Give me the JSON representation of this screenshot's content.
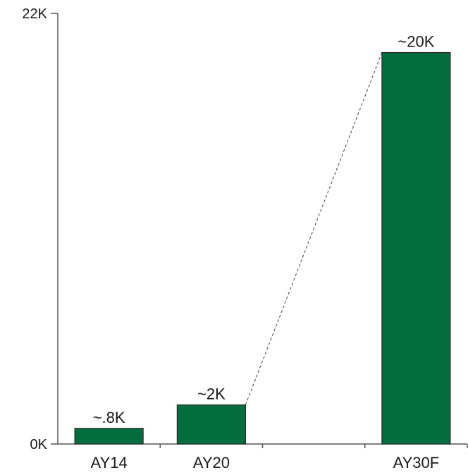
{
  "chart_data": {
    "type": "bar",
    "categories": [
      "AY14",
      "AY20",
      "",
      "AY30F"
    ],
    "values": [
      800,
      2000,
      null,
      20000
    ],
    "data_labels": [
      "~.8K",
      "~2K",
      "",
      "~20K"
    ],
    "y_ticks": [
      {
        "value": 0,
        "label": "0K"
      },
      {
        "value": 22000,
        "label": "22K"
      }
    ],
    "ylim": [
      0,
      22000
    ],
    "title": "",
    "xlabel": "",
    "ylabel": "",
    "grid": false,
    "legend": "none",
    "bar_color": "#036d3e",
    "connector": {
      "from": "AY20",
      "to": "AY30F",
      "style": "dashed"
    }
  }
}
